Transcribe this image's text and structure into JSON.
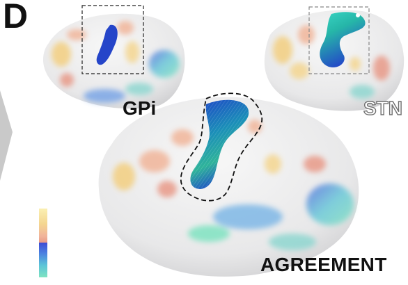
{
  "panel": {
    "letter": "D",
    "insets": [
      {
        "label": "GPi",
        "region_highlight": "blue-cluster",
        "box_style": "dashed"
      },
      {
        "label": "STN",
        "region_highlight": "green-blue-cluster",
        "box_style": "dashed"
      }
    ],
    "main_label": "AGREEMENT"
  },
  "colors": {
    "brain_surface": "#e9e9ea",
    "warm_low": "#fbf0b3",
    "warm_high": "#e89a88",
    "cool_high": "#3f4cd3",
    "cool_low": "#7fe3c1",
    "agreement_fill": "#1c7fbf",
    "arrow_gray": "#c9c9c9"
  },
  "colorbar": {
    "orientation": "vertical",
    "segments": [
      "warm",
      "cool"
    ]
  }
}
